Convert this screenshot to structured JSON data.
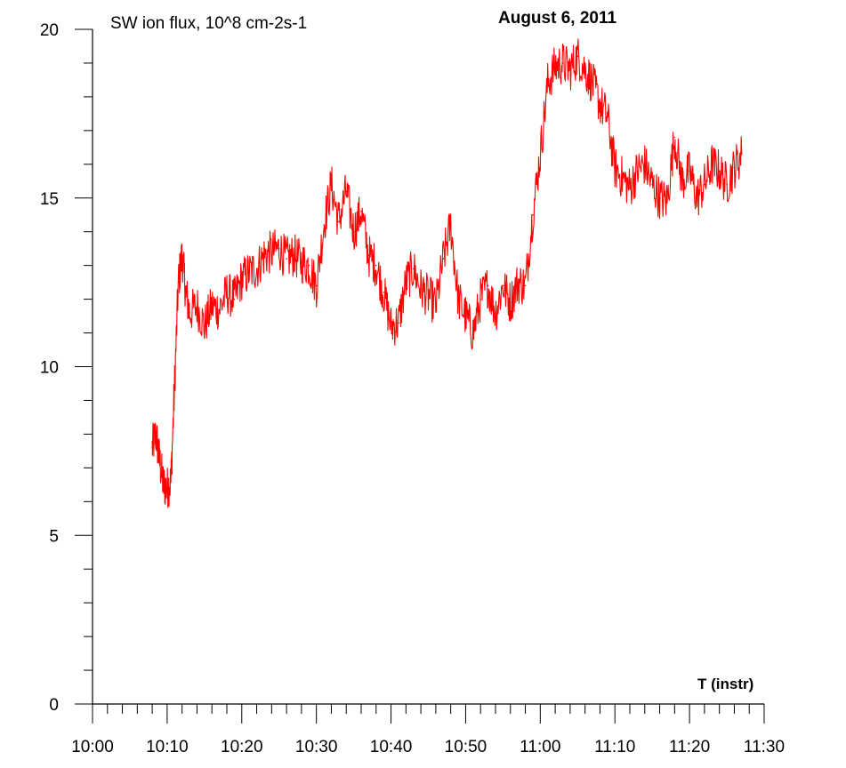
{
  "chart_data": {
    "type": "line",
    "title": "August 6, 2011",
    "ylabel": "SW ion flux, 10^8 cm-2s-1",
    "xlabel": "T (instr)",
    "x_ticks": [
      "10:00",
      "10:10",
      "10:20",
      "10:30",
      "10:40",
      "10:50",
      "11:00",
      "11:10",
      "11:20",
      "11:30"
    ],
    "y_ticks": [
      "0",
      "5",
      "10",
      "15",
      "20"
    ],
    "xlim": [
      "10:00",
      "11:30"
    ],
    "ylim": [
      0,
      20
    ],
    "grid": false,
    "line_color": "#ff0000",
    "series": [
      {
        "x": [
          "10:08:00",
          "10:08:30",
          "10:09:00",
          "10:09:30",
          "10:10:00",
          "10:10:30",
          "10:11:00",
          "10:11:30",
          "10:12:00",
          "10:12:30",
          "10:13:00",
          "10:14:00",
          "10:15:00",
          "10:16:00",
          "10:17:00",
          "10:18:00",
          "10:19:00",
          "10:20:00",
          "10:21:00",
          "10:22:00",
          "10:23:00",
          "10:24:00",
          "10:25:00",
          "10:26:00",
          "10:27:00",
          "10:28:00",
          "10:29:00",
          "10:30:00",
          "10:31:00",
          "10:32:00",
          "10:33:00",
          "10:34:00",
          "10:35:00",
          "10:36:00",
          "10:37:00",
          "10:38:00",
          "10:39:00",
          "10:40:00",
          "10:41:00",
          "10:42:00",
          "10:43:00",
          "10:44:00",
          "10:45:00",
          "10:46:00",
          "10:47:00",
          "10:48:00",
          "10:49:00",
          "10:50:00",
          "10:51:00",
          "10:52:00",
          "10:53:00",
          "10:54:00",
          "10:55:00",
          "10:56:00",
          "10:57:00",
          "10:58:00",
          "10:59:00",
          "11:00:00",
          "11:01:00",
          "11:02:00",
          "11:03:00",
          "11:04:00",
          "11:05:00",
          "11:06:00",
          "11:07:00",
          "11:08:00",
          "11:09:00",
          "11:10:00",
          "11:11:00",
          "11:12:00",
          "11:13:00",
          "11:14:00",
          "11:15:00",
          "11:16:00",
          "11:17:00",
          "11:18:00",
          "11:19:00",
          "11:20:00",
          "11:21:00",
          "11:22:00",
          "11:23:00",
          "11:24:00",
          "11:25:00",
          "11:26:00",
          "11:27:00"
        ],
        "y": [
          7.6,
          8.0,
          7.2,
          6.5,
          6.4,
          6.6,
          9.5,
          12.5,
          13.3,
          12.2,
          11.6,
          11.8,
          11.2,
          11.8,
          11.7,
          12.2,
          12.0,
          12.6,
          12.8,
          12.9,
          13.3,
          13.4,
          13.5,
          13.2,
          13.3,
          13.1,
          13.0,
          12.4,
          14.2,
          15.4,
          14.3,
          15.2,
          14.0,
          14.6,
          13.3,
          13.0,
          12.2,
          11.2,
          11.3,
          12.5,
          12.9,
          12.3,
          12.1,
          11.8,
          13.2,
          14.2,
          12.0,
          11.5,
          11.0,
          12.0,
          12.4,
          11.6,
          12.4,
          11.9,
          12.5,
          12.4,
          14.5,
          16.3,
          18.4,
          18.9,
          19.0,
          18.8,
          19.2,
          18.8,
          18.4,
          17.8,
          17.4,
          15.9,
          15.6,
          15.3,
          15.8,
          16.0,
          15.4,
          15.0,
          14.9,
          16.8,
          15.5,
          15.8,
          15.0,
          15.4,
          16.0,
          15.8,
          15.4,
          15.9,
          16.3
        ]
      }
    ]
  }
}
